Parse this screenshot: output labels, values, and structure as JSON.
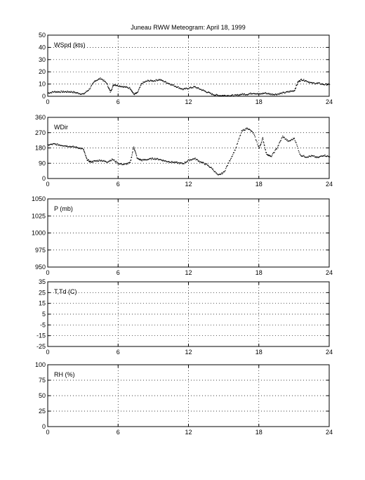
{
  "title": "Juneau RWW Meteogram:      April 18, 1999",
  "chart_data": [
    {
      "type": "scatter",
      "label": "WSpd (kts)",
      "xlim": [
        0,
        24
      ],
      "xticks": [
        0,
        6,
        12,
        18,
        24
      ],
      "ylim": [
        0,
        50
      ],
      "yticks": [
        0,
        10,
        20,
        30,
        40,
        50
      ],
      "grid": true,
      "x": [
        0.0,
        0.5,
        1.0,
        1.5,
        2.0,
        2.5,
        3.0,
        3.5,
        4.0,
        4.5,
        5.0,
        5.3,
        5.6,
        6.0,
        6.5,
        7.0,
        7.3,
        7.6,
        8.0,
        8.5,
        9.0,
        9.5,
        10.0,
        10.5,
        11.0,
        11.5,
        12.0,
        12.5,
        13.0,
        13.5,
        14.0,
        14.5,
        15.0,
        15.5,
        16.0,
        16.5,
        17.0,
        17.5,
        18.0,
        18.5,
        19.0,
        19.5,
        20.0,
        20.5,
        21.0,
        21.3,
        21.6,
        22.0,
        22.5,
        23.0,
        23.5,
        24.0
      ],
      "y": [
        3,
        4,
        4,
        4,
        4,
        3,
        2,
        6,
        13,
        15,
        11,
        4,
        10,
        9,
        8,
        7,
        2,
        3,
        11,
        13,
        13,
        14,
        12,
        10,
        8,
        6,
        7,
        8,
        6,
        4,
        2,
        1,
        1,
        1,
        1,
        2,
        2,
        3,
        2,
        3,
        2,
        2,
        3,
        4,
        5,
        12,
        14,
        13,
        11,
        11,
        10,
        10
      ]
    },
    {
      "type": "scatter",
      "label": "WDir",
      "xlim": [
        0,
        24
      ],
      "xticks": [
        0,
        6,
        12,
        18,
        24
      ],
      "ylim": [
        0,
        360
      ],
      "yticks": [
        0,
        90,
        180,
        270,
        360
      ],
      "grid": true,
      "x": [
        0.0,
        0.5,
        1.0,
        1.5,
        2.0,
        2.5,
        3.0,
        3.3,
        3.6,
        4.0,
        4.5,
        5.0,
        5.5,
        6.0,
        6.5,
        7.0,
        7.3,
        7.6,
        8.0,
        8.5,
        9.0,
        9.5,
        10.0,
        10.5,
        11.0,
        11.5,
        12.0,
        12.5,
        13.0,
        13.5,
        14.0,
        14.5,
        15.0,
        15.5,
        16.0,
        16.5,
        17.0,
        17.5,
        18.0,
        18.3,
        18.6,
        19.0,
        19.5,
        20.0,
        20.5,
        21.0,
        21.5,
        22.0,
        22.5,
        23.0,
        23.5,
        24.0
      ],
      "y": [
        200,
        205,
        200,
        195,
        190,
        185,
        175,
        115,
        100,
        105,
        110,
        100,
        115,
        90,
        85,
        95,
        190,
        120,
        110,
        115,
        120,
        115,
        105,
        100,
        95,
        90,
        110,
        120,
        100,
        85,
        60,
        20,
        40,
        110,
        180,
        280,
        300,
        270,
        180,
        240,
        150,
        130,
        180,
        250,
        220,
        240,
        140,
        130,
        135,
        125,
        140,
        130
      ]
    },
    {
      "type": "scatter",
      "label": "P (mb)",
      "xlim": [
        0,
        24
      ],
      "xticks": [
        0,
        6,
        12,
        18,
        24
      ],
      "ylim": [
        950,
        1050
      ],
      "yticks": [
        950,
        975,
        1000,
        1025,
        1050
      ],
      "grid": true,
      "x": [],
      "y": []
    },
    {
      "type": "scatter",
      "label": "T,Td (C)",
      "xlim": [
        0,
        24
      ],
      "xticks": [
        0,
        6,
        12,
        18,
        24
      ],
      "ylim": [
        -25,
        35
      ],
      "yticks": [
        -25,
        -15,
        -5,
        5,
        15,
        25,
        35
      ],
      "ytick_labels": [
        "-25",
        "-15",
        "-5",
        "5",
        "15",
        "25",
        "35"
      ],
      "grid": true,
      "x": [],
      "y": []
    },
    {
      "type": "scatter",
      "label": "RH (%)",
      "xlim": [
        0,
        24
      ],
      "xticks": [
        0,
        6,
        12,
        18,
        24
      ],
      "ylim": [
        0,
        100
      ],
      "yticks": [
        0,
        25,
        50,
        75,
        100
      ],
      "grid": true,
      "x": [],
      "y": []
    }
  ]
}
